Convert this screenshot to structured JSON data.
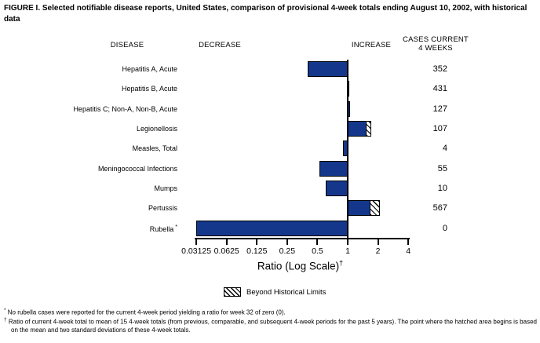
{
  "figure": {
    "title": "FIGURE I. Selected notifiable disease reports, United States, comparison of provisional 4-week totals ending August 10, 2002, with historical data"
  },
  "columns": {
    "disease": "DISEASE",
    "decrease": "DECREASE",
    "increase": "INCREASE",
    "cases_line1": "CASES CURRENT",
    "cases_line2": "4 WEEKS"
  },
  "chart_data": {
    "type": "bar",
    "orientation": "horizontal",
    "scale": "log2",
    "title": "Selected notifiable disease reports, comparison of provisional 4-week totals ending August 10, 2002, with historical data",
    "xlabel": "Ratio (Log Scale)",
    "xlabel_superscript": "†",
    "x_ticks": [
      0.03125,
      0.0625,
      0.125,
      0.25,
      0.5,
      1,
      2,
      4
    ],
    "x_tick_labels": [
      "0.03125",
      "0.0625",
      "0.125",
      "0.25",
      "0.5",
      "1",
      "2",
      "4"
    ],
    "xlim": [
      0.03125,
      4
    ],
    "baseline": 1,
    "bar_color": "#14378c",
    "grid": false,
    "legend_position": "bottom",
    "rows": [
      {
        "disease": "Hepatitis A, Acute",
        "ratio": 0.4,
        "cases": 352,
        "beyond_historical_limits": false
      },
      {
        "disease": "Hepatitis B, Acute",
        "ratio": 1.03,
        "cases": 431,
        "beyond_historical_limits": false
      },
      {
        "disease": "Hepatitis C; Non-A, Non-B, Acute",
        "ratio": 1.06,
        "cases": 127,
        "beyond_historical_limits": false
      },
      {
        "disease": "Legionellosis",
        "ratio": 1.7,
        "cases": 107,
        "beyond_historical_limits": true,
        "hatch_start": 1.5
      },
      {
        "disease": "Measles, Total",
        "ratio": 0.9,
        "cases": 4,
        "beyond_historical_limits": false
      },
      {
        "disease": "Meningococcal Infections",
        "ratio": 0.52,
        "cases": 55,
        "beyond_historical_limits": false
      },
      {
        "disease": "Mumps",
        "ratio": 0.6,
        "cases": 10,
        "beyond_historical_limits": false
      },
      {
        "disease": "Pertussis",
        "ratio": 2.08,
        "cases": 567,
        "beyond_historical_limits": true,
        "hatch_start": 1.64
      },
      {
        "disease": "Rubella",
        "ratio": 0,
        "cases": 0,
        "beyond_historical_limits": false,
        "label_superscript": "*"
      }
    ]
  },
  "legend": {
    "label": "Beyond Historical Limits"
  },
  "footnotes": [
    {
      "marker": "*",
      "text": "No rubella cases were reported for the current 4-week period yielding a ratio for week 32 of zero (0)."
    },
    {
      "marker": "†",
      "text": "Ratio of current 4-week total to mean of 15 4-week totals (from previous, comparable, and subsequent 4-week periods for the past 5 years). The point where the hatched area begins is based on the mean and two standard deviations of these 4-week totals."
    }
  ]
}
